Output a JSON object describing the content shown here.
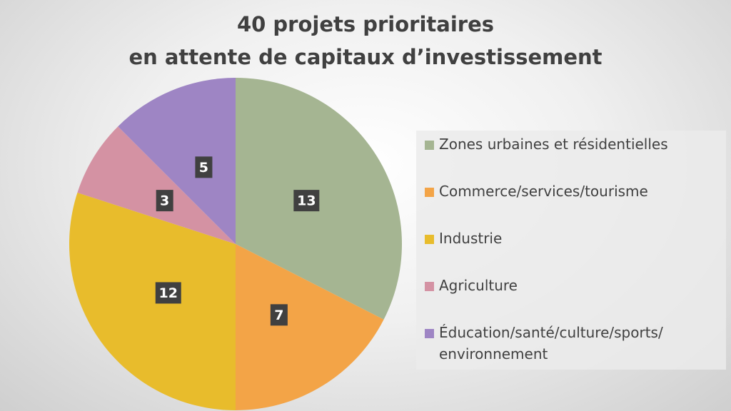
{
  "chart_data": {
    "type": "pie",
    "title": [
      "40 projets prioritaires",
      "en attente de capitaux d’investissement"
    ],
    "categories": [
      "Zones urbaines et résidentielles",
      "Commerce/services/tourisme",
      "Industrie",
      "Agriculture",
      "Éducation/santé/culture/sports/\nenvironnement"
    ],
    "values": [
      13,
      7,
      12,
      3,
      5
    ],
    "colors": [
      "#a5b592",
      "#f3a447",
      "#e8bc2c",
      "#d492a3",
      "#9e85c4"
    ],
    "legend": "right"
  }
}
